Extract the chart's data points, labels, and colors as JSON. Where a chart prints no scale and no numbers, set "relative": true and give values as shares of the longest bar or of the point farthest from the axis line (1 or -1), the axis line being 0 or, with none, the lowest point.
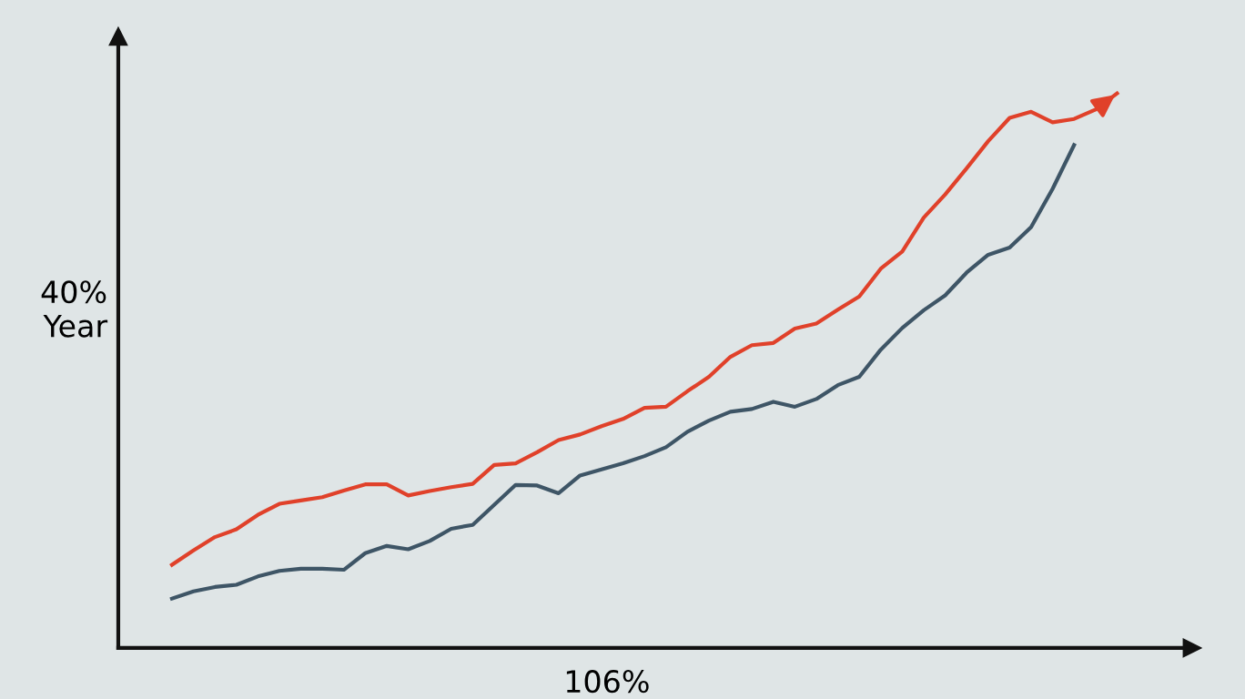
{
  "chart_data": {
    "type": "line",
    "relative": true,
    "ylabel": "40%\nYear",
    "xlabel": "106%",
    "marker": "none",
    "line_style": "solid",
    "categories": [
      null,
      null,
      null,
      null,
      null,
      null,
      null,
      null,
      null,
      null,
      null,
      null,
      null,
      null,
      null,
      null,
      null,
      null,
      null,
      null,
      null,
      null,
      null,
      null,
      null,
      null,
      null,
      null,
      null,
      null,
      null,
      null,
      null,
      null,
      null,
      null,
      null,
      null,
      null,
      null,
      null,
      null,
      null,
      null,
      null
    ],
    "series": [
      {
        "color": "#e0412a",
        "values": [
          0.15,
          0.176,
          0.2,
          0.214,
          0.24,
          0.26,
          0.266,
          0.272,
          0.284,
          0.295,
          0.295,
          0.275,
          0.283,
          0.29,
          0.296,
          0.33,
          0.333,
          0.353,
          0.375,
          0.385,
          0.4,
          0.413,
          0.433,
          0.435,
          0.463,
          0.489,
          0.525,
          0.546,
          0.55,
          0.576,
          0.585,
          0.61,
          0.634,
          0.684,
          0.715,
          0.776,
          0.818,
          0.865,
          0.914,
          0.956,
          0.967,
          0.948,
          0.954,
          0.971,
          1
        ]
      },
      {
        "color": "#3e5566",
        "values": [
          0.089,
          0.102,
          0.11,
          0.114,
          0.129,
          0.139,
          0.143,
          0.143,
          0.141,
          0.171,
          0.184,
          0.178,
          0.193,
          0.215,
          0.222,
          0.258,
          0.294,
          0.293,
          0.279,
          0.311,
          0.322,
          0.333,
          0.346,
          0.362,
          0.39,
          0.41,
          0.426,
          0.431,
          0.444,
          0.435,
          0.449,
          0.474,
          0.489,
          0.538,
          0.577,
          0.609,
          0.636,
          0.677,
          0.709,
          0.722,
          0.759,
          0.828,
          0.907,
          null,
          null
        ]
      }
    ]
  }
}
